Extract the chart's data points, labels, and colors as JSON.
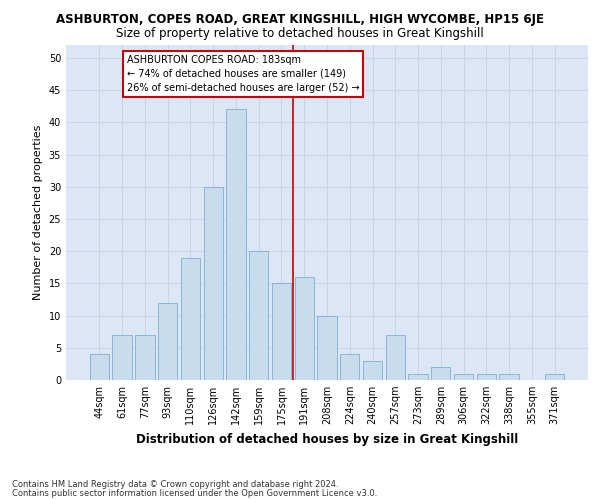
{
  "title": "ASHBURTON, COPES ROAD, GREAT KINGSHILL, HIGH WYCOMBE, HP15 6JE",
  "subtitle": "Size of property relative to detached houses in Great Kingshill",
  "xlabel": "Distribution of detached houses by size in Great Kingshill",
  "ylabel": "Number of detached properties",
  "footer1": "Contains HM Land Registry data © Crown copyright and database right 2024.",
  "footer2": "Contains public sector information licensed under the Open Government Licence v3.0.",
  "bar_labels": [
    "44sqm",
    "61sqm",
    "77sqm",
    "93sqm",
    "110sqm",
    "126sqm",
    "142sqm",
    "159sqm",
    "175sqm",
    "191sqm",
    "208sqm",
    "224sqm",
    "240sqm",
    "257sqm",
    "273sqm",
    "289sqm",
    "306sqm",
    "322sqm",
    "338sqm",
    "355sqm",
    "371sqm"
  ],
  "bar_values": [
    4,
    7,
    7,
    12,
    19,
    30,
    42,
    20,
    15,
    16,
    10,
    4,
    3,
    7,
    1,
    2,
    1,
    1,
    1,
    0,
    1
  ],
  "bar_color": "#c9dcee",
  "bar_edgecolor": "#7aafd4",
  "grid_color": "#c8d4e8",
  "background_color": "#dce6f5",
  "vline_position": 8.5,
  "vline_color": "#cc0000",
  "annotation_box_edgecolor": "#cc0000",
  "property_label": "ASHBURTON COPES ROAD: 183sqm",
  "annotation_line1": "← 74% of detached houses are smaller (149)",
  "annotation_line2": "26% of semi-detached houses are larger (52) →",
  "ylim": [
    0,
    52
  ],
  "yticks": [
    0,
    5,
    10,
    15,
    20,
    25,
    30,
    35,
    40,
    45,
    50
  ],
  "title_fontsize": 8.5,
  "subtitle_fontsize": 8.5,
  "ylabel_fontsize": 8,
  "xlabel_fontsize": 8.5,
  "tick_fontsize": 7,
  "ann_fontsize": 7,
  "footer_fontsize": 6
}
